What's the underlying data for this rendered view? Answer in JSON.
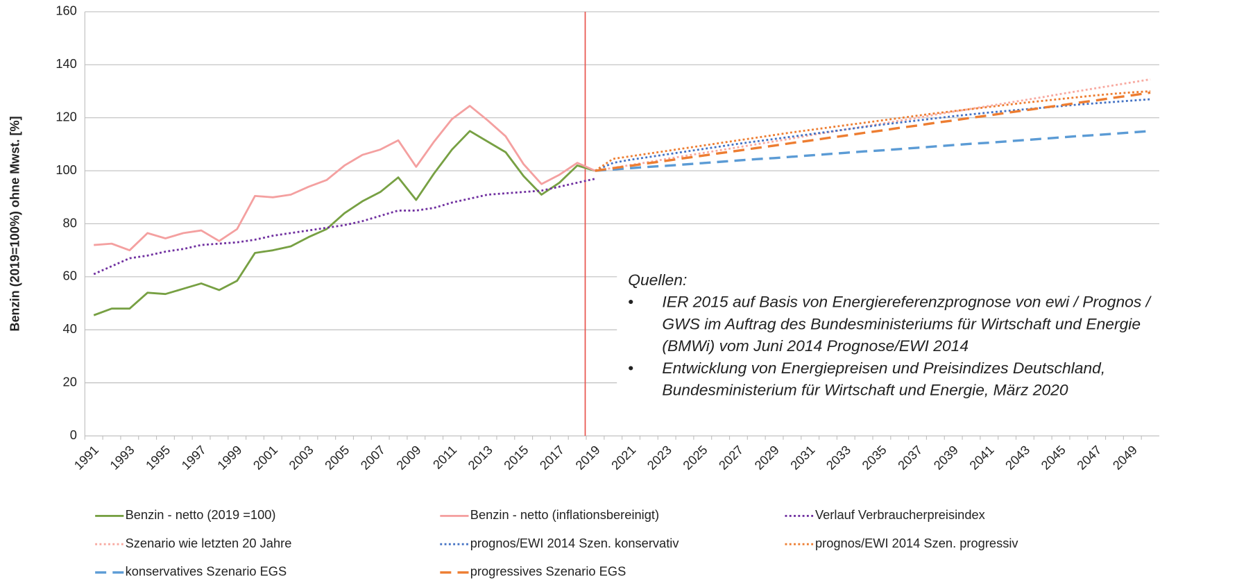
{
  "chart_data": {
    "type": "line",
    "y_label": "Benzin (2019=100%) ohne Mwst. [%]",
    "categories": [
      "1991",
      null,
      "1993",
      null,
      "1995",
      null,
      "1997",
      null,
      "1999",
      null,
      "2001",
      null,
      "2003",
      null,
      "2005",
      null,
      "2007",
      null,
      "2009",
      null,
      "2011",
      null,
      "2013",
      null,
      "2015",
      null,
      "2017",
      null,
      "2019",
      null,
      "2021",
      null,
      "2023",
      null,
      "2025",
      null,
      "2027",
      null,
      "2029",
      null,
      "2031",
      null,
      "2033",
      null,
      "2035",
      null,
      "2037",
      null,
      "2039",
      null,
      "2041",
      null,
      "2043",
      null,
      "2045",
      null,
      "2047",
      null,
      "2049",
      null
    ],
    "ylim": [
      0,
      160
    ],
    "yticks": [
      0,
      20,
      40,
      60,
      80,
      100,
      120,
      140,
      160
    ],
    "grid": true,
    "series": [
      {
        "name": "Benzin - netto  (2019 =100)",
        "color": "#77a043",
        "dash": "solid",
        "values": [
          45.5,
          48,
          48,
          54,
          53.5,
          55.5,
          57.5,
          55,
          58.5,
          69,
          70,
          71.5,
          75,
          78,
          84,
          88.5,
          92,
          97.5,
          89,
          99,
          108,
          115,
          111,
          107,
          98,
          91,
          95.5,
          102,
          100,
          null,
          null,
          null,
          null,
          null,
          null,
          null,
          null,
          null,
          null,
          null,
          null,
          null,
          null,
          null,
          null,
          null,
          null,
          null,
          null,
          null,
          null,
          null,
          null,
          null,
          null,
          null,
          null,
          null,
          null,
          null
        ]
      },
      {
        "name": "Benzin - netto (inflationsbereinigt)",
        "color": "#f4a0a0",
        "dash": "solid",
        "values": [
          72,
          72.5,
          70,
          76.5,
          74.5,
          76.5,
          77.5,
          73.5,
          78,
          90.5,
          90,
          91,
          94,
          96.5,
          102,
          106,
          108,
          111.5,
          101.5,
          111,
          119.5,
          124.5,
          119,
          113,
          102.5,
          95,
          98.5,
          103,
          100,
          null,
          null,
          null,
          null,
          null,
          null,
          null,
          null,
          null,
          null,
          null,
          null,
          null,
          null,
          null,
          null,
          null,
          null,
          null,
          null,
          null,
          null,
          null,
          null,
          null,
          null,
          null,
          null,
          null,
          null,
          null
        ]
      },
      {
        "name": "Verlauf Verbraucherpreisindex",
        "color": "#7030a0",
        "dash": "dotted",
        "values": [
          61,
          64,
          67,
          68,
          69.5,
          70.5,
          72,
          72.5,
          73,
          74,
          75.5,
          76.5,
          77.5,
          78.5,
          79.5,
          81,
          83,
          85,
          85,
          86,
          88,
          89.5,
          91,
          91.5,
          92,
          92.5,
          94,
          95.5,
          97,
          null,
          null,
          null,
          null,
          null,
          null,
          null,
          null,
          null,
          null,
          null,
          null,
          null,
          null,
          null,
          null,
          null,
          null,
          null,
          null,
          null,
          null,
          null,
          null,
          null,
          null,
          null,
          null,
          null,
          null,
          null
        ]
      },
      {
        "name": "Szenario wie letzten 20 Jahre",
        "color": "#f8a9a0",
        "dash": "dotted",
        "values": [
          null,
          null,
          null,
          null,
          null,
          null,
          null,
          null,
          null,
          null,
          null,
          null,
          null,
          null,
          null,
          null,
          null,
          null,
          null,
          null,
          null,
          null,
          null,
          null,
          null,
          null,
          null,
          null,
          100,
          101.1,
          102.2,
          103.3,
          104.5,
          105.6,
          106.7,
          107.8,
          108.9,
          110,
          111.1,
          112.2,
          113.4,
          114.5,
          115.6,
          116.7,
          117.8,
          118.9,
          120,
          121.2,
          122.3,
          123.4,
          124.5,
          125.6,
          126.7,
          127.8,
          129,
          130.1,
          131.2,
          132.3,
          133.4,
          134.5
        ]
      },
      {
        "name": "prognos/EWI 2014 Szen. konservativ",
        "color": "#4472c4",
        "dash": "dotted",
        "values": [
          null,
          null,
          null,
          null,
          null,
          null,
          null,
          null,
          null,
          null,
          null,
          null,
          null,
          null,
          null,
          null,
          null,
          null,
          null,
          null,
          null,
          null,
          null,
          null,
          null,
          null,
          null,
          null,
          100,
          103,
          104.2,
          105.2,
          106.2,
          107.2,
          108.2,
          109.2,
          110.2,
          111.1,
          112,
          112.9,
          113.8,
          114.7,
          115.6,
          116.5,
          117.4,
          118.2,
          119,
          119.8,
          120.6,
          121.3,
          122,
          122.6,
          123.2,
          123.8,
          124.4,
          125,
          125.5,
          126,
          126.5,
          127
        ]
      },
      {
        "name": "prognos/EWI 2014 Szen. progressiv",
        "color": "#ed7d31",
        "dash": "dotted",
        "values": [
          null,
          null,
          null,
          null,
          null,
          null,
          null,
          null,
          null,
          null,
          null,
          null,
          null,
          null,
          null,
          null,
          null,
          null,
          null,
          null,
          null,
          null,
          null,
          null,
          null,
          null,
          null,
          null,
          100,
          104.5,
          105.5,
          106.5,
          107.5,
          108.5,
          109.5,
          110.5,
          111.5,
          112.5,
          113.5,
          114.5,
          115.4,
          116.3,
          117.2,
          118.1,
          119,
          119.9,
          120.8,
          121.7,
          122.5,
          123.3,
          124.1,
          124.9,
          125.7,
          126.4,
          127.1,
          127.8,
          128.5,
          129.1,
          129.6,
          130
        ]
      },
      {
        "name": "konservatives Szenario EGS",
        "color": "#5b9bd5",
        "dash": "dashed",
        "values": [
          null,
          null,
          null,
          null,
          null,
          null,
          null,
          null,
          null,
          null,
          null,
          null,
          null,
          null,
          null,
          null,
          null,
          null,
          null,
          null,
          null,
          null,
          null,
          null,
          null,
          null,
          null,
          null,
          100,
          100.5,
          101,
          101.5,
          101.9,
          102.4,
          102.9,
          103.4,
          103.9,
          104.4,
          104.8,
          105.3,
          105.8,
          106.3,
          106.8,
          107.3,
          107.7,
          108.2,
          108.7,
          109.2,
          109.7,
          110.2,
          110.6,
          111.1,
          111.6,
          112.1,
          112.6,
          113.1,
          113.5,
          114,
          114.5,
          115
        ]
      },
      {
        "name": "progressives Szenario EGS",
        "color": "#ed7d31",
        "dash": "dashed",
        "values": [
          null,
          null,
          null,
          null,
          null,
          null,
          null,
          null,
          null,
          null,
          null,
          null,
          null,
          null,
          null,
          null,
          null,
          null,
          null,
          null,
          null,
          null,
          null,
          null,
          null,
          null,
          null,
          null,
          100,
          101,
          101.9,
          102.9,
          103.8,
          104.8,
          105.7,
          106.7,
          107.6,
          108.6,
          109.5,
          110.5,
          111.4,
          112.4,
          113.3,
          114.3,
          115.2,
          116.2,
          117.1,
          118.1,
          119,
          120,
          120.9,
          121.9,
          122.8,
          123.8,
          124.7,
          125.7,
          126.6,
          127.6,
          128.5,
          129.5
        ]
      }
    ],
    "annotation": {
      "title": "Quellen:",
      "items": [
        [
          "IER 2015 auf Basis von Energiereferenzprognose von ewi / Prognos /",
          "GWS im Auftrag des Bundesministeriums für Wirtschaft und Energie",
          "(BMWi) vom Juni 2014 Prognose/EWI 2014"
        ],
        [
          "Entwicklung von Energiepreisen und Preisindizes Deutschland,",
          "Bundesministerium für Wirtschaft und Energie, März 2020"
        ]
      ]
    }
  }
}
